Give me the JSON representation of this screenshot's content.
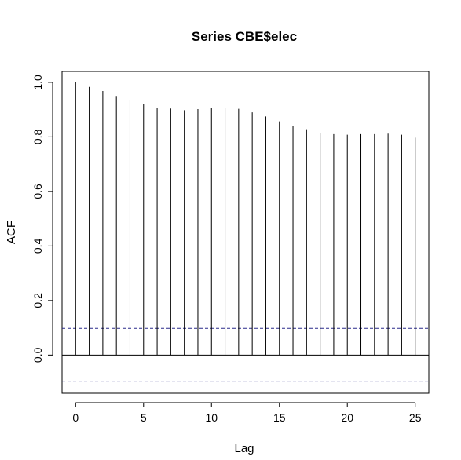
{
  "chart_data": {
    "type": "bar",
    "title": "Series  CBE$elec",
    "xlabel": "Lag",
    "ylabel": "ACF",
    "xlim": [
      -1,
      26
    ],
    "ylim": [
      -0.14,
      1.04
    ],
    "x_ticks": [
      "0",
      "5",
      "10",
      "15",
      "20",
      "25"
    ],
    "y_ticks": [
      "0.0",
      "0.2",
      "0.4",
      "0.6",
      "0.8",
      "1.0"
    ],
    "lags": [
      0,
      1,
      2,
      3,
      4,
      5,
      6,
      7,
      8,
      9,
      10,
      11,
      12,
      13,
      14,
      15,
      16,
      17,
      18,
      19,
      20,
      21,
      22,
      23,
      24,
      25
    ],
    "values": [
      1.0,
      0.983,
      0.968,
      0.95,
      0.935,
      0.921,
      0.907,
      0.904,
      0.898,
      0.902,
      0.905,
      0.906,
      0.903,
      0.89,
      0.875,
      0.857,
      0.84,
      0.828,
      0.815,
      0.81,
      0.808,
      0.81,
      0.81,
      0.812,
      0.808,
      0.797
    ],
    "confidence_bound": 0.098,
    "colors": {
      "bars": "#000000",
      "zero_line": "#000000",
      "ci_line": "#2a2a8a"
    },
    "grid": false
  }
}
